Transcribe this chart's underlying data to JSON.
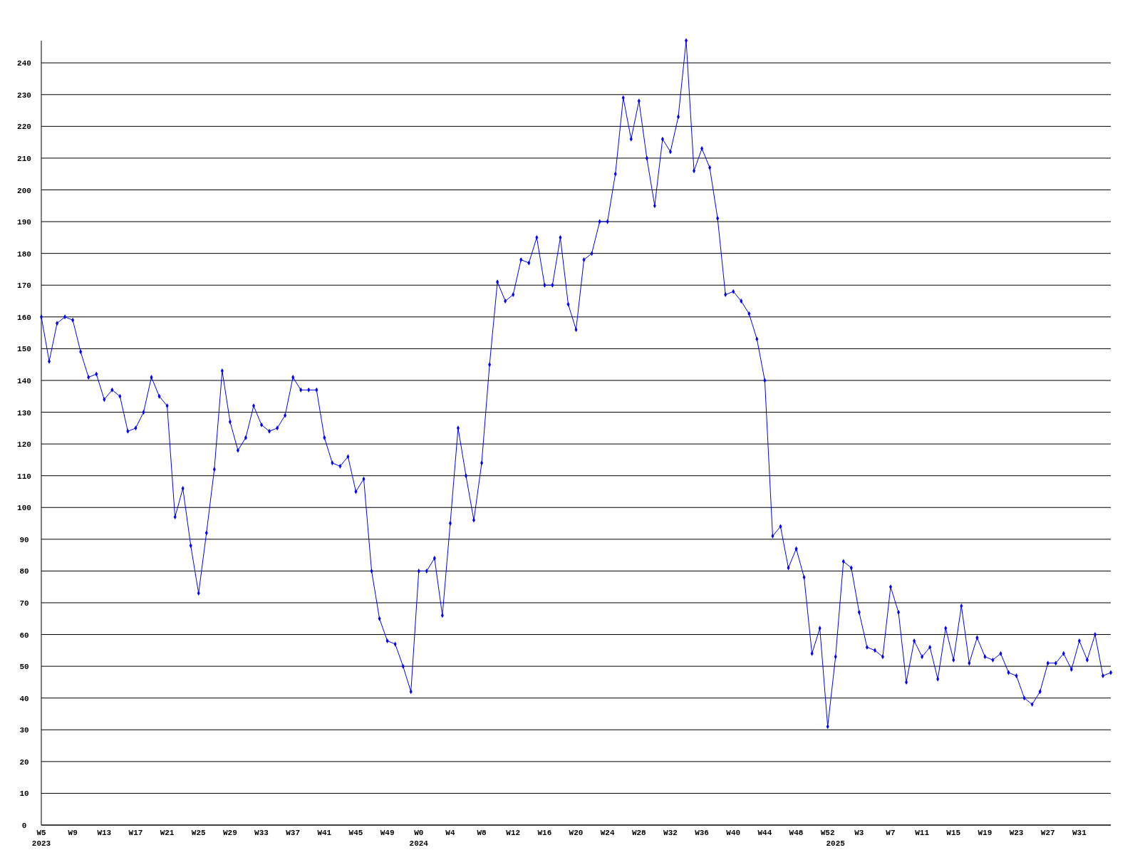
{
  "chart_data": {
    "type": "line",
    "categories": [
      "W5\n2023",
      null,
      null,
      null,
      "W9",
      null,
      null,
      null,
      "W13",
      null,
      null,
      null,
      "W17",
      null,
      null,
      null,
      "W21",
      null,
      null,
      null,
      "W25",
      null,
      null,
      null,
      "W29",
      null,
      null,
      null,
      "W33",
      null,
      null,
      null,
      "W37",
      null,
      null,
      null,
      "W41",
      null,
      null,
      null,
      "W45",
      null,
      null,
      null,
      "W49",
      null,
      null,
      null,
      "W0\n2024",
      null,
      null,
      null,
      "W4",
      null,
      null,
      null,
      "W8",
      null,
      null,
      null,
      "W12",
      null,
      null,
      null,
      "W16",
      null,
      null,
      null,
      "W20",
      null,
      null,
      null,
      "W24",
      null,
      null,
      null,
      "W28",
      null,
      null,
      null,
      "W32",
      null,
      null,
      null,
      "W36",
      null,
      null,
      null,
      "W40",
      null,
      null,
      null,
      "W44",
      null,
      null,
      null,
      "W48",
      null,
      null,
      null,
      "W52",
      "\n2025",
      null,
      null,
      "W3",
      null,
      null,
      null,
      "W7",
      null,
      null,
      null,
      "W11",
      null,
      null,
      null,
      "W15",
      null,
      null,
      null,
      "W19",
      null,
      null,
      null,
      "W23",
      null,
      null,
      null,
      "W27",
      null,
      null,
      null,
      "W31",
      null,
      null,
      null,
      null
    ],
    "series": [
      {
        "color": "#0000ff",
        "values": [
          160,
          146,
          158,
          160,
          159,
          149,
          141,
          142,
          134,
          137,
          135,
          124,
          125,
          130,
          141,
          135,
          132,
          97,
          106,
          88,
          73,
          92,
          112,
          143,
          127,
          118,
          122,
          132,
          126,
          124,
          125,
          129,
          141,
          137,
          137,
          137,
          122,
          114,
          113,
          116,
          105,
          109,
          80,
          65,
          58,
          57,
          50,
          42,
          80,
          80,
          84,
          66,
          95,
          125,
          110,
          96,
          114,
          145,
          171,
          165,
          167,
          178,
          177,
          185,
          170,
          170,
          185,
          164,
          156,
          178,
          180,
          190,
          190,
          205,
          229,
          216,
          228,
          210,
          195,
          216,
          212,
          223,
          247,
          206,
          213,
          207,
          191,
          167,
          168,
          165,
          161,
          153,
          140,
          91,
          94,
          81,
          87,
          78,
          54,
          62,
          31,
          53,
          83,
          81,
          67,
          56,
          55,
          53,
          75,
          67,
          45,
          58,
          53,
          56,
          46,
          62,
          52,
          69,
          51,
          59,
          53,
          52,
          54,
          48,
          47,
          40,
          38,
          42,
          51,
          51,
          54,
          49,
          58,
          52,
          60,
          47,
          48
        ]
      }
    ],
    "ylim": [
      0,
      247
    ],
    "yticks": [
      0,
      10,
      20,
      30,
      40,
      50,
      60,
      70,
      80,
      90,
      100,
      110,
      120,
      130,
      140,
      150,
      160,
      170,
      180,
      190,
      200,
      210,
      220,
      230,
      240
    ],
    "grid": "y",
    "marker": "diamond",
    "line_style": "solid"
  }
}
